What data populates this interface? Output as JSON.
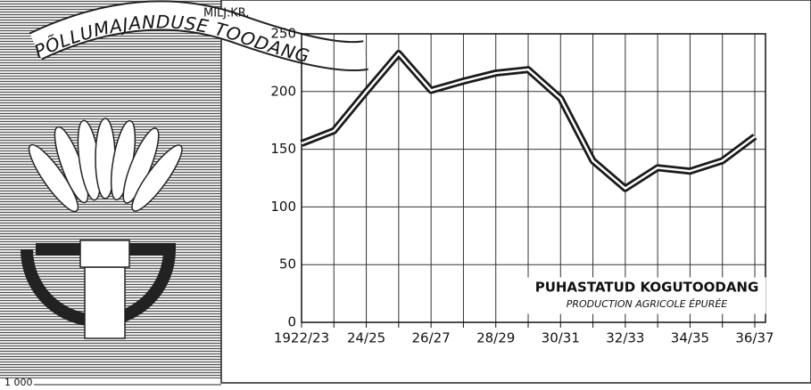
{
  "chart_data": {
    "type": "line",
    "title": "PÕLLUMAJANDUSE TOODANG",
    "y_label": "MILJ.KR.",
    "categories": [
      "1922/23",
      null,
      "24/25",
      null,
      "26/27",
      null,
      "28/29",
      null,
      "30/31",
      null,
      "32/33",
      null,
      "34/35",
      null,
      "36/37"
    ],
    "series": [
      {
        "name": "PUHASTATUD KOGUTOODANG",
        "color": "#1a1a1a",
        "values": [
          155,
          166,
          200,
          233,
          201,
          209,
          216,
          219,
          194,
          140,
          116,
          134,
          131,
          140,
          161
        ]
      }
    ],
    "legend_subtitle": "PRODUCTION AGRICOLE ÉPURÉE",
    "ylim": [
      0,
      250
    ],
    "yticks": [
      0,
      50,
      100,
      150,
      200,
      250
    ],
    "grid": true
  },
  "fragment": {
    "tick_label": "1 000"
  }
}
